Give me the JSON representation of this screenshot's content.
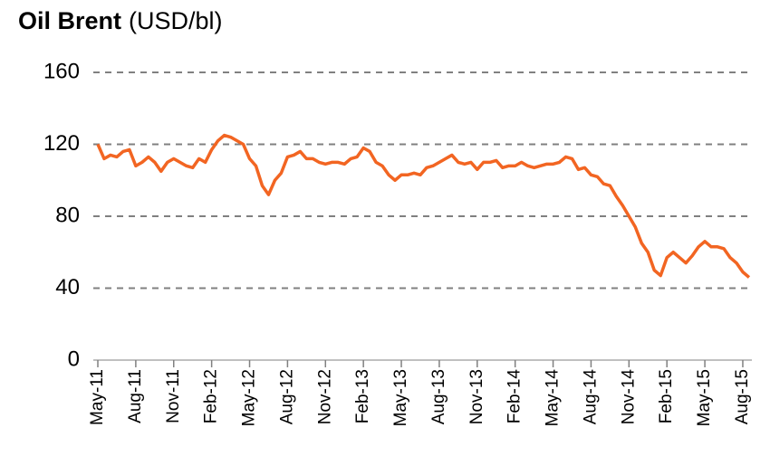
{
  "chart_data": {
    "type": "line",
    "title": "Oil Brent",
    "subtitle": "(USD/bl)",
    "categories": [
      "May-11",
      null,
      null,
      null,
      null,
      null,
      "Aug-11",
      null,
      null,
      null,
      null,
      null,
      "Nov-11",
      null,
      null,
      null,
      null,
      null,
      "Feb-12",
      null,
      null,
      null,
      null,
      null,
      "May-12",
      null,
      null,
      null,
      null,
      null,
      "Aug-12",
      null,
      null,
      null,
      null,
      null,
      "Nov-12",
      null,
      null,
      null,
      null,
      null,
      "Feb-13",
      null,
      null,
      null,
      null,
      null,
      "May-13",
      null,
      null,
      null,
      null,
      null,
      "Aug-13",
      null,
      null,
      null,
      null,
      null,
      "Nov-13",
      null,
      null,
      null,
      null,
      null,
      "Feb-14",
      null,
      null,
      null,
      null,
      null,
      "May-14",
      null,
      null,
      null,
      null,
      null,
      "Aug-14",
      null,
      null,
      null,
      null,
      null,
      "Nov-14",
      null,
      null,
      null,
      null,
      null,
      "Feb-15",
      null,
      null,
      null,
      null,
      null,
      "May-15",
      null,
      null,
      null,
      null,
      null,
      "Aug-15",
      null
    ],
    "series": [
      {
        "name": "Oil Brent",
        "color": "#f26522",
        "values": [
          120,
          112,
          114,
          113,
          116,
          117,
          108,
          110,
          113,
          110,
          105,
          110,
          112,
          110,
          108,
          107,
          112,
          110,
          117,
          122,
          125,
          124,
          122,
          120,
          112,
          108,
          97,
          92,
          100,
          104,
          113,
          114,
          116,
          112,
          112,
          110,
          109,
          110,
          110,
          109,
          112,
          113,
          118,
          116,
          110,
          108,
          103,
          100,
          103,
          103,
          104,
          103,
          107,
          108,
          110,
          112,
          114,
          110,
          109,
          110,
          106,
          110,
          110,
          111,
          107,
          108,
          108,
          110,
          108,
          107,
          108,
          109,
          109,
          110,
          113,
          112,
          106,
          107,
          103,
          102,
          98,
          97,
          91,
          86,
          80,
          74,
          65,
          60,
          50,
          47,
          57,
          60,
          57,
          54,
          58,
          63,
          66,
          63,
          63,
          62,
          57,
          54,
          49,
          46
        ]
      }
    ],
    "ylim": [
      0,
      160
    ],
    "yticks": [
      0,
      40,
      80,
      120,
      160
    ],
    "grid": true
  }
}
